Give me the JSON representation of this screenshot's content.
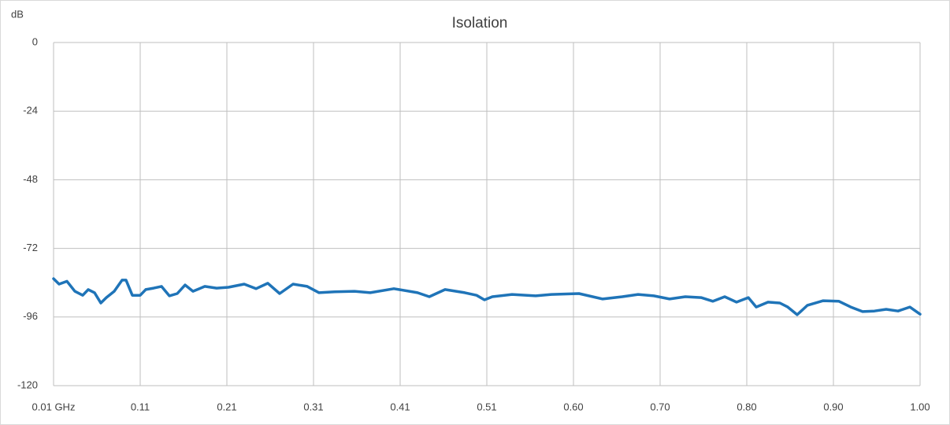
{
  "chart_data": {
    "type": "line",
    "title": "Isolation",
    "y_label": "dB",
    "x": [
      0.01,
      0.0163,
      0.0253,
      0.0343,
      0.0433,
      0.0496,
      0.0568,
      0.064,
      0.0703,
      0.0793,
      0.0883,
      0.0928,
      0.1,
      0.109,
      0.1153,
      0.1243,
      0.1333,
      0.1423,
      0.1513,
      0.1603,
      0.1693,
      0.1828,
      0.1963,
      0.2098,
      0.2278,
      0.2413,
      0.2548,
      0.2683,
      0.2836,
      0.2998,
      0.3133,
      0.3313,
      0.3538,
      0.3718,
      0.3988,
      0.4258,
      0.4393,
      0.4573,
      0.4798,
      0.4933,
      0.5023,
      0.5113,
      0.5338,
      0.5608,
      0.5788,
      0.6103,
      0.6373,
      0.6598,
      0.6778,
      0.6958,
      0.7138,
      0.7318,
      0.7498,
      0.7633,
      0.7768,
      0.7903,
      0.8038,
      0.8128,
      0.8263,
      0.8398,
      0.8488,
      0.8596,
      0.8713,
      0.8893,
      0.9073,
      0.9208,
      0.9343,
      0.9478,
      0.9613,
      0.9748,
      0.9883,
      1.0
    ],
    "series": [
      {
        "name": "Isolation",
        "color": "#1f74b8",
        "values": [
          -82.6,
          -84.5,
          -83.5,
          -87,
          -88.4,
          -86.4,
          -87.5,
          -91.1,
          -89.2,
          -87,
          -83.1,
          -83.1,
          -88.4,
          -88.4,
          -86.4,
          -85.9,
          -85.3,
          -88.6,
          -87.8,
          -84.8,
          -87,
          -85.3,
          -85.9,
          -85.6,
          -84.5,
          -86.1,
          -84.2,
          -87.8,
          -84.5,
          -85.3,
          -87.5,
          -87.2,
          -87,
          -87.5,
          -86.1,
          -87.5,
          -88.9,
          -86.4,
          -87.5,
          -88.4,
          -90,
          -88.9,
          -88.1,
          -88.6,
          -88.1,
          -87.8,
          -89.7,
          -88.9,
          -88.1,
          -88.6,
          -89.7,
          -88.9,
          -89.2,
          -90.5,
          -88.9,
          -90.8,
          -89.2,
          -92.5,
          -90.8,
          -91.1,
          -92.5,
          -95.2,
          -91.9,
          -90.3,
          -90.5,
          -92.5,
          -94.1,
          -93.9,
          -93.3,
          -93.9,
          -92.5,
          -95
        ]
      }
    ],
    "xlim": [
      0.01,
      1.0
    ],
    "xticks": [
      {
        "value": 0.01,
        "label": "0.01 GHz"
      },
      {
        "value": 0.109,
        "label": "0.11"
      },
      {
        "value": 0.208,
        "label": "0.21"
      },
      {
        "value": 0.307,
        "label": "0.31"
      },
      {
        "value": 0.406,
        "label": "0.41"
      },
      {
        "value": 0.505,
        "label": "0.51"
      },
      {
        "value": 0.604,
        "label": "0.60"
      },
      {
        "value": 0.703,
        "label": "0.70"
      },
      {
        "value": 0.802,
        "label": "0.80"
      },
      {
        "value": 0.901,
        "label": "0.90"
      },
      {
        "value": 1.0,
        "label": "1.00"
      }
    ],
    "ylim": [
      -120,
      0
    ],
    "yticks": [
      0,
      -24,
      -48,
      -72,
      -96,
      -120
    ],
    "grid": true
  }
}
